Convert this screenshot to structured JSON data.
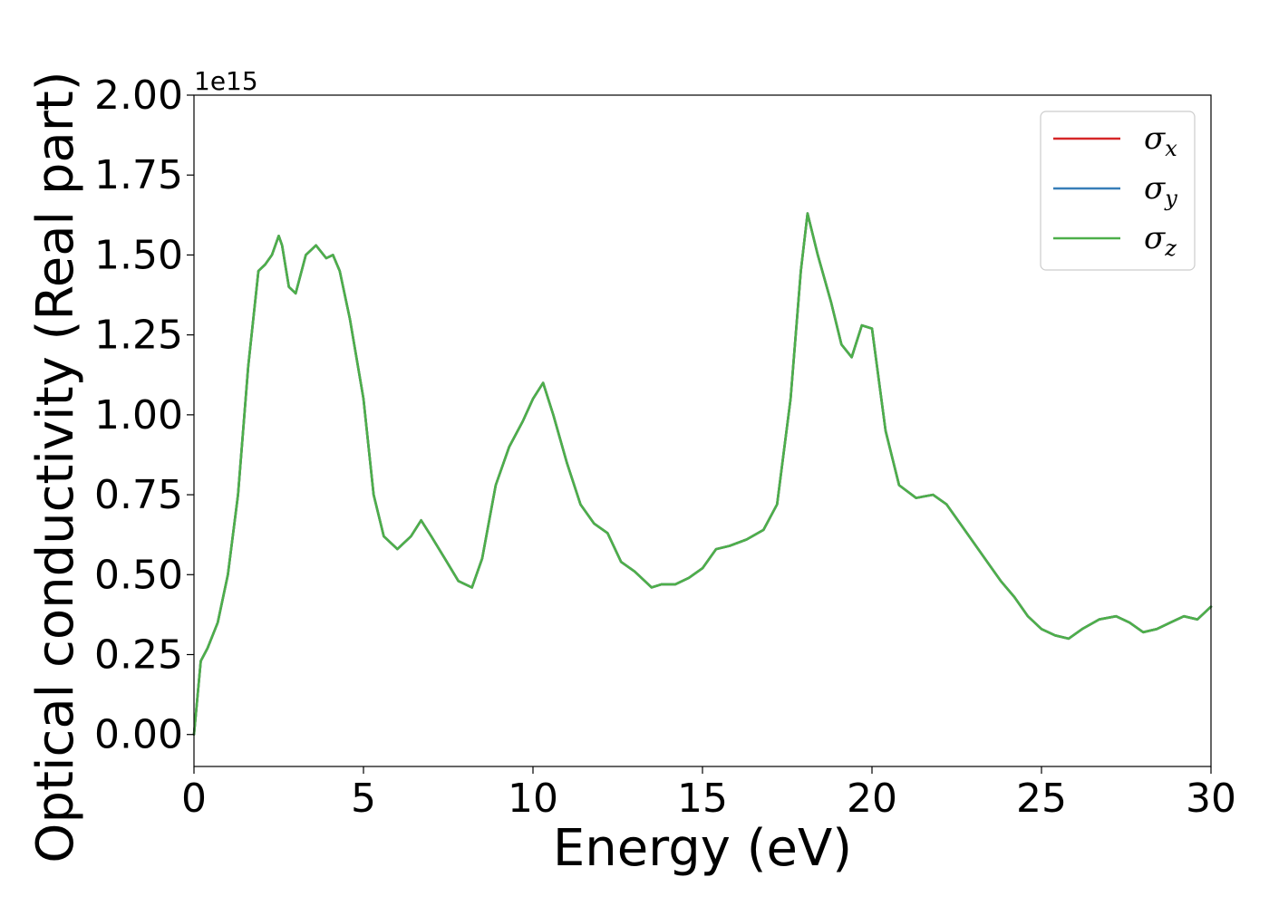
{
  "chart_data": {
    "type": "line",
    "xlabel": "Energy (eV)",
    "ylabel": "Optical conductivity (Real part)",
    "y_offset_label": "1e15",
    "y_scale": 1000000000000000.0,
    "xlim": [
      0,
      30
    ],
    "ylim": [
      -0.1,
      2.0
    ],
    "xticks": [
      0,
      5,
      10,
      15,
      20,
      25,
      30
    ],
    "xtick_labels": [
      "0",
      "5",
      "10",
      "15",
      "20",
      "25",
      "30"
    ],
    "yticks": [
      0.0,
      0.25,
      0.5,
      0.75,
      1.0,
      1.25,
      1.5,
      1.75,
      2.0
    ],
    "ytick_labels": [
      "0.00",
      "0.25",
      "0.50",
      "0.75",
      "1.00",
      "1.25",
      "1.50",
      "1.75",
      "2.00"
    ],
    "grid": false,
    "legend_position": "top-right",
    "x": [
      0,
      0.2,
      0.4,
      0.7,
      1.0,
      1.3,
      1.6,
      1.9,
      2.1,
      2.3,
      2.5,
      2.6,
      2.8,
      3.0,
      3.3,
      3.6,
      3.9,
      4.1,
      4.3,
      4.6,
      5.0,
      5.3,
      5.6,
      6.0,
      6.4,
      6.7,
      7.0,
      7.4,
      7.8,
      8.2,
      8.5,
      8.9,
      9.3,
      9.7,
      10.0,
      10.3,
      10.6,
      11.0,
      11.4,
      11.8,
      12.2,
      12.6,
      13.0,
      13.5,
      13.8,
      14.2,
      14.6,
      15.0,
      15.4,
      15.8,
      16.3,
      16.8,
      17.2,
      17.6,
      17.9,
      18.1,
      18.4,
      18.8,
      19.1,
      19.4,
      19.7,
      20.0,
      20.4,
      20.8,
      21.3,
      21.8,
      22.2,
      22.6,
      23.0,
      23.4,
      23.8,
      24.2,
      24.6,
      25.0,
      25.4,
      25.8,
      26.2,
      26.7,
      27.2,
      27.6,
      28.0,
      28.4,
      28.8,
      29.2,
      29.6,
      30.0
    ],
    "series": [
      {
        "name": "σx",
        "color": "#d62728",
        "y": [
          0.0,
          0.23,
          0.27,
          0.35,
          0.5,
          0.75,
          1.15,
          1.45,
          1.47,
          1.5,
          1.56,
          1.53,
          1.4,
          1.38,
          1.5,
          1.53,
          1.49,
          1.5,
          1.45,
          1.3,
          1.05,
          0.75,
          0.62,
          0.58,
          0.62,
          0.67,
          0.62,
          0.55,
          0.48,
          0.46,
          0.55,
          0.78,
          0.9,
          0.98,
          1.05,
          1.1,
          1.0,
          0.85,
          0.72,
          0.66,
          0.63,
          0.54,
          0.51,
          0.46,
          0.47,
          0.47,
          0.49,
          0.52,
          0.58,
          0.59,
          0.61,
          0.64,
          0.72,
          1.05,
          1.45,
          1.63,
          1.5,
          1.35,
          1.22,
          1.18,
          1.28,
          1.27,
          0.95,
          0.78,
          0.74,
          0.75,
          0.72,
          0.66,
          0.6,
          0.54,
          0.48,
          0.43,
          0.37,
          0.33,
          0.31,
          0.3,
          0.33,
          0.36,
          0.37,
          0.35,
          0.32,
          0.33,
          0.35,
          0.37,
          0.36,
          0.4
        ]
      },
      {
        "name": "σy",
        "color": "#377eb8",
        "y": [
          0.0,
          0.23,
          0.27,
          0.35,
          0.5,
          0.75,
          1.15,
          1.45,
          1.47,
          1.5,
          1.56,
          1.53,
          1.4,
          1.38,
          1.5,
          1.53,
          1.49,
          1.5,
          1.45,
          1.3,
          1.05,
          0.75,
          0.62,
          0.58,
          0.62,
          0.67,
          0.62,
          0.55,
          0.48,
          0.46,
          0.55,
          0.78,
          0.9,
          0.98,
          1.05,
          1.1,
          1.0,
          0.85,
          0.72,
          0.66,
          0.63,
          0.54,
          0.51,
          0.46,
          0.47,
          0.47,
          0.49,
          0.52,
          0.58,
          0.59,
          0.61,
          0.64,
          0.72,
          1.05,
          1.45,
          1.63,
          1.5,
          1.35,
          1.22,
          1.18,
          1.28,
          1.27,
          0.95,
          0.78,
          0.74,
          0.75,
          0.72,
          0.66,
          0.6,
          0.54,
          0.48,
          0.43,
          0.37,
          0.33,
          0.31,
          0.3,
          0.33,
          0.36,
          0.37,
          0.35,
          0.32,
          0.33,
          0.35,
          0.37,
          0.36,
          0.4
        ]
      },
      {
        "name": "σz",
        "color": "#4daf4a",
        "y": [
          0.0,
          0.23,
          0.27,
          0.35,
          0.5,
          0.75,
          1.15,
          1.45,
          1.47,
          1.5,
          1.56,
          1.53,
          1.4,
          1.38,
          1.5,
          1.53,
          1.49,
          1.5,
          1.45,
          1.3,
          1.05,
          0.75,
          0.62,
          0.58,
          0.62,
          0.67,
          0.62,
          0.55,
          0.48,
          0.46,
          0.55,
          0.78,
          0.9,
          0.98,
          1.05,
          1.1,
          1.0,
          0.85,
          0.72,
          0.66,
          0.63,
          0.54,
          0.51,
          0.46,
          0.47,
          0.47,
          0.49,
          0.52,
          0.58,
          0.59,
          0.61,
          0.64,
          0.72,
          1.05,
          1.45,
          1.63,
          1.5,
          1.35,
          1.22,
          1.18,
          1.28,
          1.27,
          0.95,
          0.78,
          0.74,
          0.75,
          0.72,
          0.66,
          0.6,
          0.54,
          0.48,
          0.43,
          0.37,
          0.33,
          0.31,
          0.3,
          0.33,
          0.36,
          0.37,
          0.35,
          0.32,
          0.33,
          0.35,
          0.37,
          0.36,
          0.4
        ]
      }
    ],
    "legend": [
      {
        "symbol": "σ",
        "sub": "x",
        "color": "#d62728"
      },
      {
        "symbol": "σ",
        "sub": "y",
        "color": "#377eb8"
      },
      {
        "symbol": "σ",
        "sub": "z",
        "color": "#4daf4a"
      }
    ]
  }
}
